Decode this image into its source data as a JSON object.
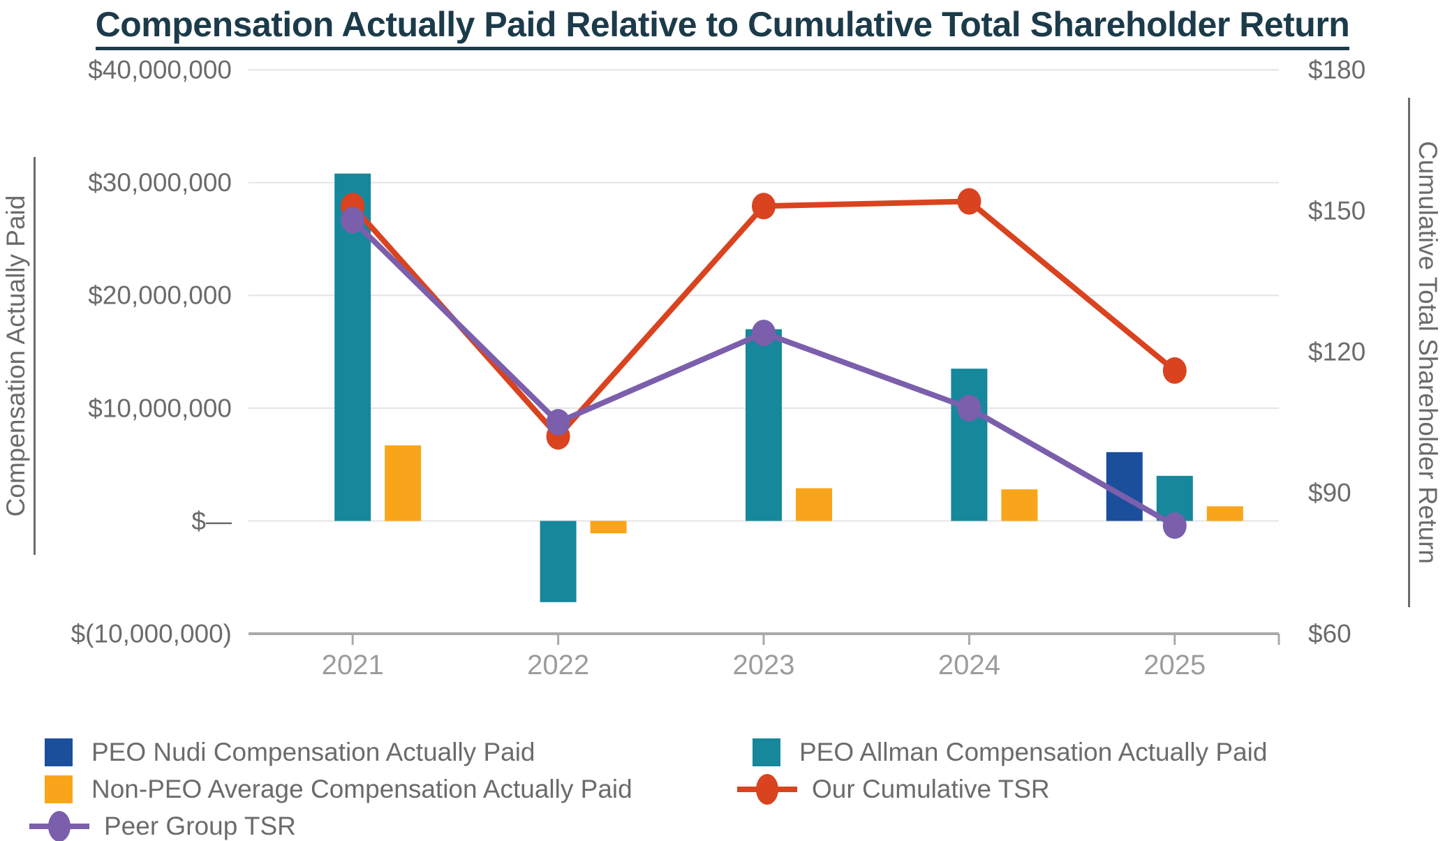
{
  "title": "Compensation Actually Paid Relative to Cumulative Total Shareholder Return",
  "axes": {
    "left_title": "Compensation Actually Paid",
    "right_title": "Cumulative Total Shareholder Return",
    "left_ticks": [
      {
        "label": "$40,000,000",
        "value": 40000000
      },
      {
        "label": "$30,000,000",
        "value": 30000000
      },
      {
        "label": "$20,000,000",
        "value": 20000000
      },
      {
        "label": "$10,000,000",
        "value": 10000000
      },
      {
        "label": "$—",
        "value": 0
      },
      {
        "label": "$(10,000,000)",
        "value": -10000000
      }
    ],
    "right_ticks": [
      {
        "label": "$180",
        "value": 180
      },
      {
        "label": "$150",
        "value": 150
      },
      {
        "label": "$120",
        "value": 120
      },
      {
        "label": "$90",
        "value": 90
      },
      {
        "label": "$60",
        "value": 60
      }
    ]
  },
  "chart_data": {
    "type": "combo-bar-line",
    "categories": [
      "2021",
      "2022",
      "2023",
      "2024",
      "2025"
    ],
    "left_axis_range": [
      -10000000,
      40000000
    ],
    "right_axis_range": [
      60,
      180
    ],
    "grid": "horizontal",
    "legend_position": "bottom",
    "series": [
      {
        "id": "peo-nudi",
        "name": "PEO Nudi Compensation Actually Paid",
        "type": "bar",
        "axis": "left",
        "color": "#1b4f9c",
        "group_offset": -72,
        "values": [
          null,
          null,
          null,
          null,
          6100000
        ]
      },
      {
        "id": "peo-allman",
        "name": "PEO Allman Compensation Actually Paid",
        "type": "bar",
        "axis": "left",
        "color": "#17879b",
        "group_offset": 0,
        "values": [
          30800000,
          -7200000,
          17000000,
          13500000,
          4000000
        ]
      },
      {
        "id": "non-peo-average",
        "name": "Non-PEO Average Compensation Actually Paid",
        "type": "bar",
        "axis": "left",
        "color": "#f9a51b",
        "group_offset": 72,
        "values": [
          6700000,
          -1100000,
          2900000,
          2800000,
          1300000
        ]
      },
      {
        "id": "our-cumulative-tsr",
        "name": "Our Cumulative TSR",
        "type": "line",
        "axis": "right",
        "color": "#d9431f",
        "values": [
          151,
          102,
          151,
          152,
          116
        ]
      },
      {
        "id": "peer-group-tsr",
        "name": "Peer Group TSR",
        "type": "line",
        "axis": "right",
        "color": "#7b5fac",
        "values": [
          148,
          105,
          124,
          108,
          83
        ]
      }
    ]
  },
  "legend": {
    "columns": [
      {
        "items": [
          {
            "series": 0,
            "marker": "swatch"
          },
          {
            "series": 2,
            "marker": "swatch"
          },
          {
            "series": 4,
            "marker": "line-dot"
          }
        ]
      },
      {
        "items": [
          {
            "series": 1,
            "marker": "swatch"
          },
          {
            "series": 3,
            "marker": "line-dot"
          }
        ]
      }
    ]
  },
  "colors": {
    "title": "#1c3b4a",
    "axis_text": "#6b6b6b",
    "year_text": "#9c9c9c",
    "gridline": "#e4e4e4",
    "axis_line": "#a9a9a9"
  }
}
